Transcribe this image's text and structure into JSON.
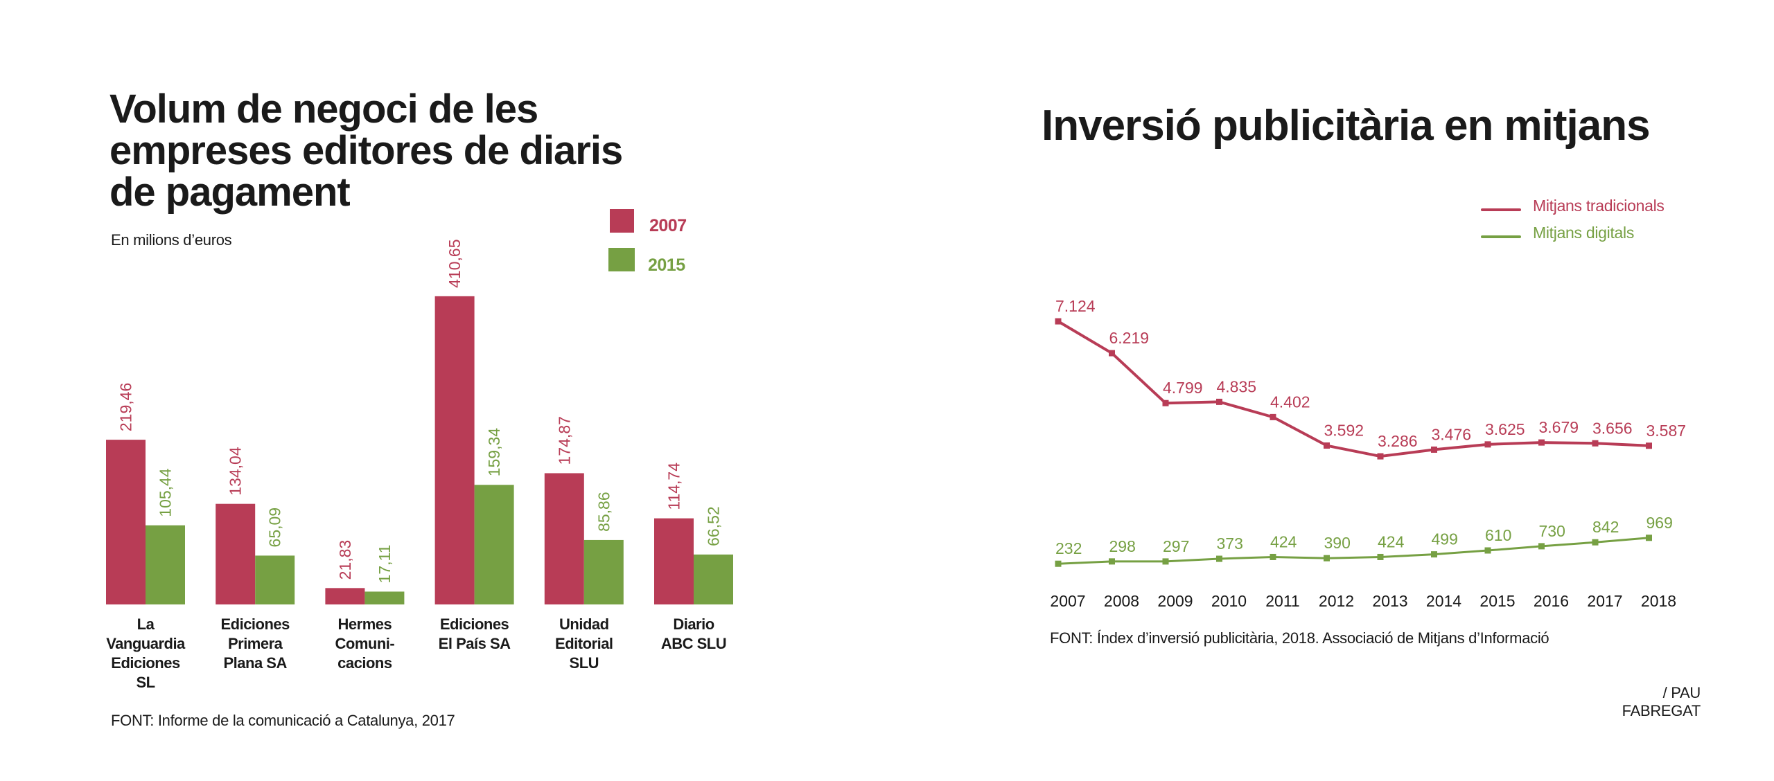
{
  "left_chart": {
    "title_lines": [
      "Volum de negoci de les",
      "empreses editores de diaris",
      "de pagament"
    ],
    "subtitle": "En milions d’euros",
    "legend": [
      {
        "label": "2007",
        "color": "#b83c56"
      },
      {
        "label": "2015",
        "color": "#76a043"
      }
    ],
    "source": "FONT: Informe de la comunicació a Catalunya, 2017"
  },
  "right_chart": {
    "title": "Inversió publicitària en mitjans",
    "legend": [
      {
        "label": "Mitjans tradicionals",
        "color": "#b83c56"
      },
      {
        "label": "Mitjans digitals",
        "color": "#76a043"
      }
    ],
    "source": "FONT: Índex d’inversió publicitària, 2018. Associació de Mitjans d’Informació",
    "credit": "/ PAU FABREGAT"
  },
  "chart_data": [
    {
      "type": "bar",
      "title": "Volum de negoci de les empreses editores de diaris de pagament",
      "subtitle": "En milions d’euros",
      "xlabel": "",
      "ylabel": "",
      "categories": [
        [
          "La",
          "Vanguardia",
          "Ediciones",
          "SL"
        ],
        [
          "Ediciones",
          "Primera",
          "Plana SA"
        ],
        [
          "Hermes",
          "Comuni-",
          "cacions"
        ],
        [
          "Ediciones",
          "El País SA"
        ],
        [
          "Unidad",
          "Editorial",
          "SLU"
        ],
        [
          "Diario",
          "ABC SLU"
        ]
      ],
      "series": [
        {
          "name": "2007",
          "color": "#b83c56",
          "values": [
            219.46,
            134.04,
            21.83,
            410.65,
            174.87,
            114.74
          ],
          "labels": [
            "219,46",
            "134,04",
            "21,83",
            "410,65",
            "174,87",
            "114,74"
          ]
        },
        {
          "name": "2015",
          "color": "#76a043",
          "values": [
            105.44,
            65.09,
            17.11,
            159.34,
            85.86,
            66.52
          ],
          "labels": [
            "105,44",
            "65,09",
            "17,11",
            "159,34",
            "85,86",
            "66,52"
          ]
        }
      ],
      "ylim": [
        0,
        420
      ],
      "grid": false,
      "legend_position": "top-right"
    },
    {
      "type": "line",
      "title": "Inversió publicitària en mitjans",
      "xlabel": "",
      "ylabel": "",
      "x": [
        "2007",
        "2008",
        "2009",
        "2010",
        "2011",
        "2012",
        "2013",
        "2014",
        "2015",
        "2016",
        "2017",
        "2018"
      ],
      "series": [
        {
          "name": "Mitjans tradicionals",
          "color": "#b83c56",
          "values": [
            7124,
            6219,
            4799,
            4835,
            4402,
            3592,
            3286,
            3476,
            3625,
            3679,
            3656,
            3587
          ],
          "labels": [
            "7.124",
            "6.219",
            "4.799",
            "4.835",
            "4.402",
            "3.592",
            "3.286",
            "3.476",
            "3.625",
            "3.679",
            "3.656",
            "3.587"
          ]
        },
        {
          "name": "Mitjans digitals",
          "color": "#76a043",
          "values": [
            232,
            298,
            297,
            373,
            424,
            390,
            424,
            499,
            610,
            730,
            842,
            969
          ],
          "labels": [
            "232",
            "298",
            "297",
            "373",
            "424",
            "390",
            "424",
            "499",
            "610",
            "730",
            "842",
            "969"
          ]
        }
      ],
      "ylim": [
        0,
        7200
      ],
      "grid": false,
      "legend_position": "top-right"
    }
  ]
}
